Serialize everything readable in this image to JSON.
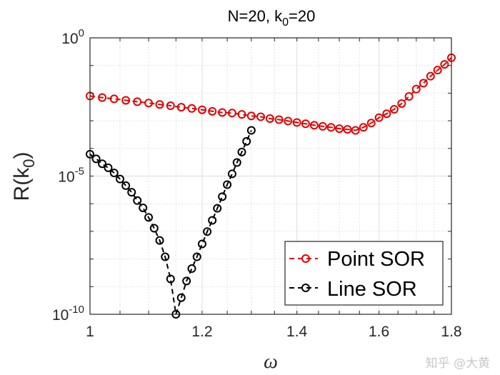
{
  "chart_data": {
    "type": "line",
    "title": "N=20, k0=20",
    "title_parts": {
      "pre": "N=20, k",
      "sub": "0",
      "post": "=20"
    },
    "xlabel": "ω",
    "ylabel": "R(k0)",
    "ylabel_parts": {
      "pre": "R(k",
      "sub": "0",
      "post": ")"
    },
    "xscale": "log",
    "yscale": "log",
    "xlim": [
      1,
      1.8
    ],
    "ylim": [
      1e-10,
      1
    ],
    "xticks": [
      1,
      1.2,
      1.4,
      1.6,
      1.8
    ],
    "xtick_labels": [
      "1",
      "1.2",
      "1.4",
      "1.6",
      "1.8"
    ],
    "yticks": [
      1,
      1e-05,
      1e-10
    ],
    "ytick_labels": [
      {
        "base": "10",
        "exp": "0"
      },
      {
        "base": "10",
        "exp": "-5"
      },
      {
        "base": "10",
        "exp": "-10"
      }
    ],
    "grid": true,
    "legend_placement": "bottom-right",
    "series": [
      {
        "name": "Point SOR",
        "color": "#e00000",
        "linestyle": "dashed",
        "marker": "circle",
        "x": [
          1.0,
          1.02,
          1.04,
          1.06,
          1.08,
          1.1,
          1.12,
          1.14,
          1.16,
          1.18,
          1.2,
          1.22,
          1.24,
          1.26,
          1.28,
          1.3,
          1.32,
          1.34,
          1.36,
          1.38,
          1.4,
          1.42,
          1.44,
          1.46,
          1.48,
          1.5,
          1.52,
          1.54,
          1.56,
          1.58,
          1.6,
          1.62,
          1.64,
          1.66,
          1.68,
          1.7,
          1.72,
          1.74,
          1.76,
          1.78,
          1.8
        ],
        "y": [
          0.0079,
          0.0069,
          0.0062,
          0.0055,
          0.0049,
          0.0044,
          0.0039,
          0.0035,
          0.0031,
          0.0028,
          0.0025,
          0.0022,
          0.002,
          0.0019,
          0.0017,
          0.0015,
          0.0014,
          0.0012,
          0.0011,
          0.00098,
          0.00087,
          0.00078,
          0.00069,
          0.00063,
          0.00058,
          0.00052,
          0.00049,
          0.00045,
          0.00058,
          0.00083,
          0.0013,
          0.0018,
          0.0026,
          0.0042,
          0.0076,
          0.014,
          0.023,
          0.041,
          0.068,
          0.11,
          0.19
        ]
      },
      {
        "name": "Line SOR",
        "color": "#000000",
        "linestyle": "dashed",
        "marker": "circle",
        "x": [
          1.0,
          1.01,
          1.02,
          1.03,
          1.04,
          1.05,
          1.06,
          1.07,
          1.08,
          1.09,
          1.1,
          1.11,
          1.12,
          1.13,
          1.14,
          1.15,
          1.16,
          1.17,
          1.18,
          1.19,
          1.2,
          1.21,
          1.22,
          1.23,
          1.24,
          1.25,
          1.26,
          1.27,
          1.28,
          1.29,
          1.3
        ],
        "y": [
          6.2e-05,
          4.2e-05,
          2.8e-05,
          2e-05,
          1.3e-05,
          7.8e-06,
          4.5e-06,
          2.6e-06,
          1.3e-06,
          7.1e-07,
          3.2e-07,
          1.3e-07,
          4.7e-08,
          1.2e-08,
          1.9e-09,
          1e-10,
          4e-10,
          1.6e-09,
          4.5e-09,
          1.2e-08,
          3.5e-08,
          9.8e-08,
          2.5e-07,
          6.8e-07,
          1.8e-06,
          4.9e-06,
          1.2e-05,
          3.1e-05,
          7.4e-05,
          0.00018,
          0.00045
        ]
      }
    ]
  },
  "watermark": "知乎 @大黄"
}
